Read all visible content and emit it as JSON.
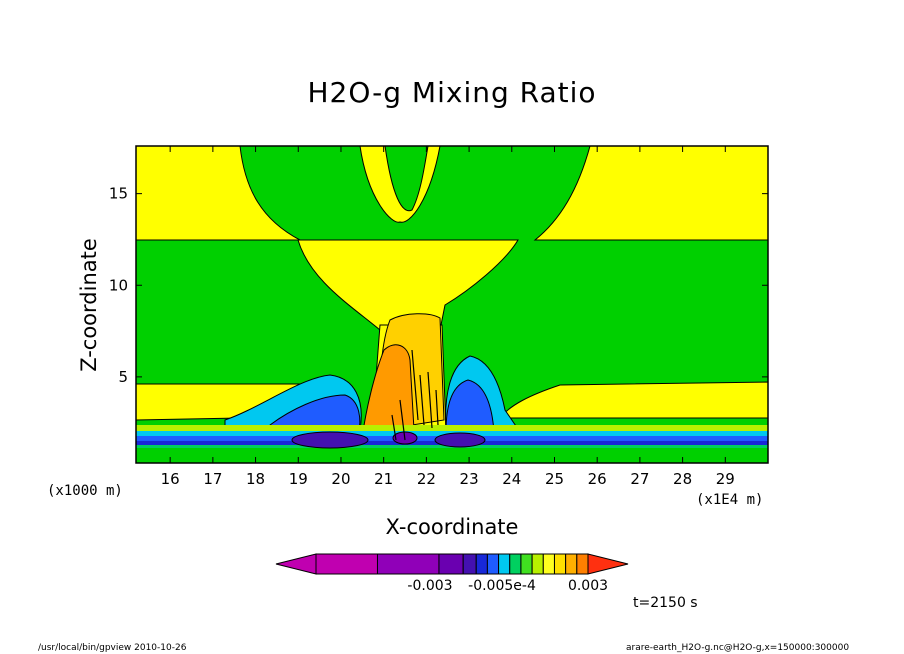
{
  "chart_data": {
    "type": "heatmap",
    "title": "H2O-g Mixing Ratio",
    "xlabel": "X-coordinate",
    "ylabel": "Z-coordinate",
    "x_unit_left": "(x1000 m)",
    "x_unit_right": "(x1E4 m)",
    "xlim": [
      15.2,
      30
    ],
    "ylim": [
      0.3,
      17.6
    ],
    "x_ticks": [
      16,
      17,
      18,
      19,
      20,
      21,
      22,
      23,
      24,
      25,
      26,
      27,
      28,
      29
    ],
    "y_ticks": [
      5,
      10,
      15
    ],
    "colorbar": {
      "colors": [
        "#c000b0",
        "#9000b8",
        "#6a00b0",
        "#4410b0",
        "#1828d8",
        "#1f5cff",
        "#00c8f0",
        "#00d060",
        "#40e020",
        "#b8f000",
        "#ffff20",
        "#ffe000",
        "#ffb000",
        "#ff8000",
        "#ff3010"
      ],
      "labels": [
        "-0.003",
        "-0.005e-4",
        "0.003"
      ]
    },
    "time_label": "t=2150 s"
  },
  "footer": {
    "left": "/usr/local/bin/gpview   2010-10-26",
    "right": "arare-earth_H2O-g.nc@H2O-g,x=150000:300000"
  }
}
